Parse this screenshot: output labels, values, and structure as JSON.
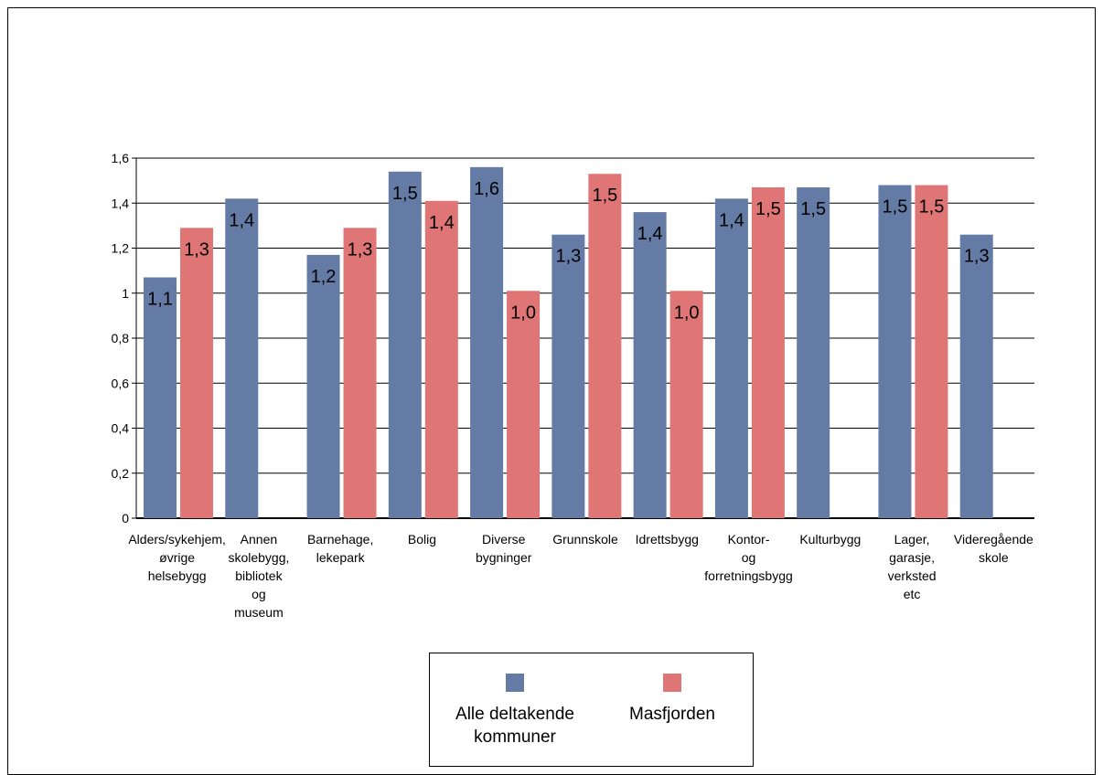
{
  "chart_data": {
    "type": "bar",
    "categories": [
      "Alders/sykehjem,\nøvrige\nhelsebygg",
      "Annen\nskolebygg,\nbibliotek\nog\nmuseum",
      "Barnehage,\nlekepark",
      "Bolig",
      "Diverse\nbygninger",
      "Grunnskole",
      "Idrettsbygg",
      "Kontor-\nog\nforretningsbygg",
      "Kulturbygg",
      "Lager,\ngarasje,\nverksted\netc",
      "Videregående\nskole"
    ],
    "series": [
      {
        "name": "Alle deltakende kommuner",
        "color": "#647ba6",
        "values": [
          1.07,
          1.42,
          1.17,
          1.54,
          1.56,
          1.26,
          1.36,
          1.42,
          1.47,
          1.48,
          1.26
        ],
        "labels": [
          "1,1",
          "1,4",
          "1,2",
          "1,5",
          "1,6",
          "1,3",
          "1,4",
          "1,4",
          "1,5",
          "1,5",
          "1,3"
        ]
      },
      {
        "name": "Masfjorden",
        "color": "#df7574",
        "values": [
          1.29,
          null,
          1.29,
          1.41,
          1.01,
          1.53,
          1.01,
          1.47,
          null,
          1.48,
          null
        ],
        "labels": [
          "1,3",
          null,
          "1,3",
          "1,4",
          "1,0",
          "1,5",
          "1,0",
          "1,5",
          null,
          "1,5",
          null
        ]
      }
    ],
    "ylim": [
      0,
      1.6
    ],
    "yticks": [
      0,
      0.2,
      0.4,
      0.6,
      0.8,
      1,
      1.2,
      1.4,
      1.6
    ],
    "ytick_labels": [
      "0",
      "0,2",
      "0,4",
      "0,6",
      "0,8",
      "1",
      "1,2",
      "1,4",
      "1,6"
    ],
    "grid": true,
    "legend_position": "bottom"
  },
  "legend": {
    "series1_label": "Alle deltakende\nkommuner",
    "series2_label": "Masfjorden"
  }
}
